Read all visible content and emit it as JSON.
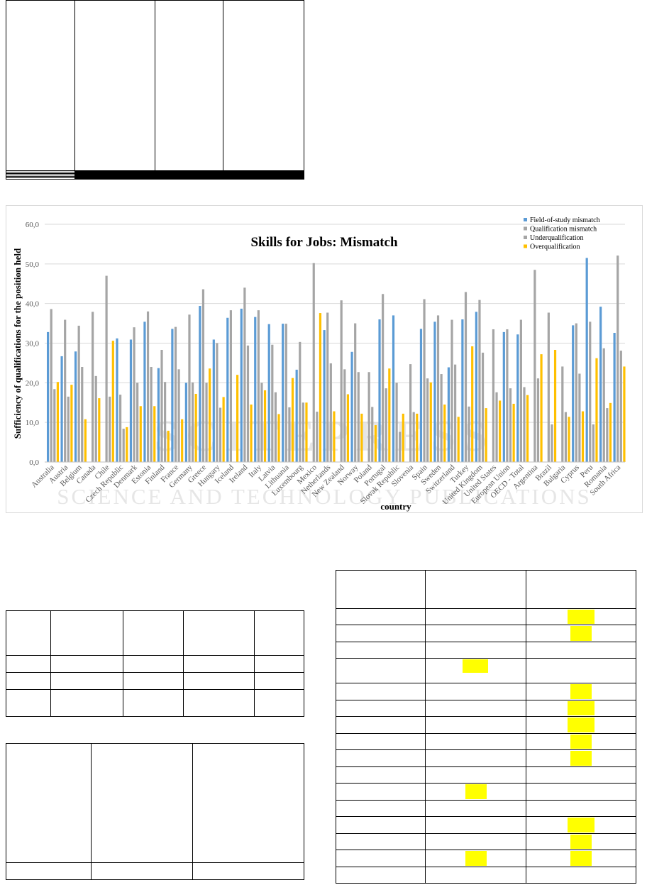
{
  "top_table": {
    "rows": [
      {
        "group": 0,
        "hl": null
      },
      {
        "group": 1,
        "hl": "a"
      },
      {
        "group": 1,
        "hl": "a"
      },
      {
        "group": 2,
        "hl": "a"
      },
      {
        "group": 2,
        "hl": null
      },
      {
        "group": 3,
        "hl": "b"
      },
      {
        "group": 3,
        "hl": null
      },
      {
        "group": 4,
        "hl": "a"
      },
      {
        "group": 4,
        "hl": "a"
      },
      {
        "group": 5,
        "hl": "a"
      },
      {
        "group": 5,
        "hl": "a"
      },
      {
        "group": 6,
        "hl": null
      },
      {
        "group": 6,
        "hl": null
      }
    ]
  },
  "mid_left_table": {
    "rows": 4
  },
  "bottom_left_table": {
    "rows": 2
  },
  "right_table": {
    "rows": [
      {
        "c2": false,
        "c3": false
      },
      {
        "c2": false,
        "c3": true
      },
      {
        "c2": false,
        "c3": true
      },
      {
        "c2": false,
        "c3": false
      },
      {
        "c2": true,
        "c3": false
      },
      {
        "c2": false,
        "c3": true
      },
      {
        "c2": false,
        "c3": true
      },
      {
        "c2": false,
        "c3": true
      },
      {
        "c2": false,
        "c3": true
      },
      {
        "c2": false,
        "c3": true
      },
      {
        "c2": false,
        "c3": false
      },
      {
        "c2": true,
        "c3": false
      },
      {
        "c2": false,
        "c3": false
      },
      {
        "c2": false,
        "c3": true
      },
      {
        "c2": false,
        "c3": true
      },
      {
        "c2": true,
        "c3": true
      },
      {
        "c2": false,
        "c3": false
      }
    ]
  },
  "watermark": {
    "line1": "SCITEPRESS",
    "line2": "SCIENCE AND TECHNOLOGY PUBLICATIONS"
  },
  "colors": {
    "field": "#5b9bd5",
    "qual": "#a5a5a5",
    "under": "#a5a5a5",
    "over": "#ffc000",
    "highlight": "#ffff00"
  },
  "chart_data": {
    "type": "bar",
    "title": "Skills for Jobs: Mismatch",
    "xlabel": "country",
    "ylabel": "Sufficiency of qualifications for the position held",
    "ylim": [
      0,
      60
    ],
    "yticks": [
      "0,0",
      "10,0",
      "20,0",
      "30,0",
      "40,0",
      "50,0",
      "60,0"
    ],
    "legend_position": "top-right",
    "categories": [
      "Australia",
      "Austria",
      "Belgium",
      "Canada",
      "Chile",
      "Czech Republic",
      "Denmark",
      "Estonia",
      "Finland",
      "France",
      "Germany",
      "Greece",
      "Hungary",
      "Iceland",
      "Ireland",
      "Italy",
      "Latvia",
      "Lithuania",
      "Luxembourg",
      "Mexico",
      "Netherlands",
      "New Zealand",
      "Norway",
      "Poland",
      "Portugal",
      "Slovak Republic",
      "Slovenia",
      "Spain",
      "Sweden",
      "Switzerland",
      "Turkey",
      "United Kingdom",
      "United States",
      "European Union",
      "OECD - Total",
      "Argentina",
      "Brazil",
      "Bulgaria",
      "Cyprus",
      "Peru",
      "Romania",
      "South Africa"
    ],
    "series": [
      {
        "name": "Field-of-study mismatch",
        "values": [
          32.8,
          26.7,
          27.9,
          0,
          0,
          31.2,
          30.9,
          35.4,
          23.7,
          33.6,
          20.0,
          39.4,
          30.9,
          36.4,
          38.7,
          36.6,
          34.8,
          34.9,
          23.3,
          0,
          33.3,
          0,
          27.8,
          0,
          36.0,
          37.0,
          0,
          33.6,
          35.4,
          23.9,
          36.0,
          37.9,
          0,
          32.8,
          32.2,
          0,
          0,
          0,
          34.5,
          51.5,
          39.2,
          32.6
        ]
      },
      {
        "name": "Qualification mismatch",
        "values": [
          38.6,
          35.9,
          34.4,
          37.9,
          47.0,
          17.0,
          34.0,
          38.0,
          28.3,
          34.1,
          37.2,
          43.6,
          30.0,
          38.3,
          44.0,
          38.3,
          29.6,
          34.9,
          30.3,
          50.2,
          37.7,
          40.8,
          35.0,
          22.7,
          42.4,
          20.0,
          24.7,
          41.1,
          37.0,
          35.9,
          42.9,
          40.9,
          33.5,
          33.5,
          35.9,
          48.5,
          37.7,
          24.1,
          35.0,
          35.4,
          28.7,
          52.1
        ]
      },
      {
        "name": "Underqualification",
        "values": [
          18.4,
          16.5,
          24.0,
          21.7,
          16.5,
          8.4,
          20.0,
          24.0,
          20.2,
          23.4,
          20.1,
          20.0,
          13.7,
          0,
          29.4,
          20.0,
          17.6,
          13.8,
          15.0,
          12.7,
          24.9,
          23.4,
          22.7,
          13.9,
          18.6,
          7.6,
          12.6,
          21.1,
          22.2,
          24.6,
          14.0,
          27.6,
          17.6,
          18.6,
          18.9,
          21.1,
          9.5,
          12.6,
          22.3,
          9.5,
          13.6,
          28.1
        ]
      },
      {
        "name": "Overqualification",
        "values": [
          20.2,
          19.5,
          10.8,
          16.1,
          30.6,
          8.8,
          14.1,
          14.1,
          7.9,
          10.8,
          17.2,
          23.6,
          16.4,
          22.0,
          14.5,
          18.1,
          12.1,
          21.2,
          15.0,
          37.6,
          12.8,
          17.1,
          12.2,
          9.3,
          23.6,
          12.2,
          12.2,
          20.1,
          14.5,
          11.4,
          29.2,
          13.6,
          15.5,
          14.7,
          16.9,
          27.2,
          28.3,
          11.4,
          12.8,
          26.2,
          14.9,
          24.1
        ]
      }
    ]
  }
}
